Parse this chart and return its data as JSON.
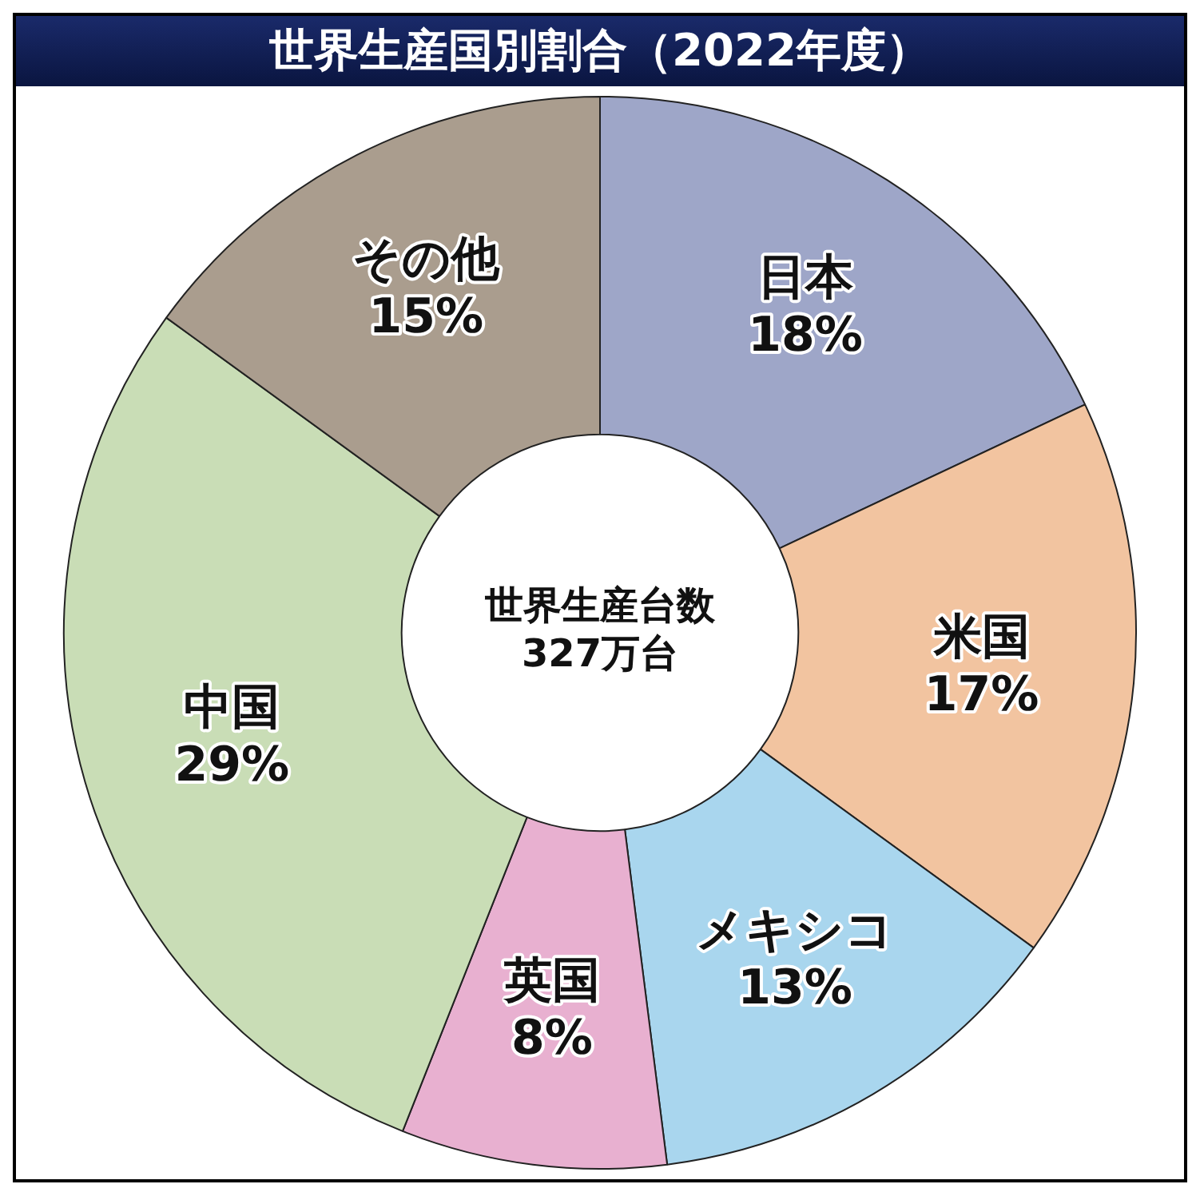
{
  "chart_data": {
    "type": "donut",
    "title": "世界生産国別割合（2022年度）",
    "categories": [
      "日本",
      "米国",
      "メキシコ",
      "英国",
      "中国",
      "その他"
    ],
    "values": [
      18,
      17,
      13,
      8,
      29,
      15
    ],
    "value_labels": [
      "18%",
      "17%",
      "13%",
      "8%",
      "29%",
      "15%"
    ],
    "colors": [
      "#9ea6c8",
      "#f2c4a0",
      "#a9d6ee",
      "#e8b0d0",
      "#c9ddb6",
      "#aa9d8e"
    ],
    "annotations": [
      "世界生産台数",
      "327万台"
    ],
    "legend": false
  }
}
